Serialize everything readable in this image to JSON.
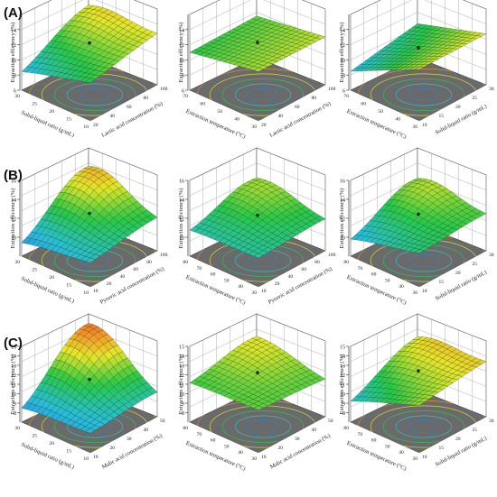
{
  "figure": {
    "row_labels": [
      "(A)",
      "(B)",
      "(C)"
    ]
  },
  "chart_data": [
    {
      "type": "surface",
      "row": "A",
      "zlabel": "Extraction efficiency (%)",
      "xlabel": "Lactic acid concentration (%)",
      "ylabel": "Solid-liquid ratio (g/mL)",
      "xticks": [
        "20",
        "40",
        "60",
        "80",
        "100"
      ],
      "yticks": [
        "10",
        "15",
        "20",
        "25",
        "30"
      ],
      "zticks": [
        "6",
        "8",
        "10",
        "12",
        "14"
      ],
      "zlim": [
        6,
        16
      ],
      "corners": {
        "x0y0": 8.2,
        "x1y0": 11.0,
        "x0y1": 11.0,
        "x1y1": 13.0
      },
      "peak": 15.2
    },
    {
      "type": "surface",
      "row": "A",
      "zlabel": "Extraction efficiency (%)",
      "xlabel": "Lactic acid concentration (%)",
      "ylabel": "Extraction temperature (°C)",
      "xticks": [
        "20",
        "40",
        "60",
        "80",
        "100"
      ],
      "yticks": [
        "30",
        "40",
        "50",
        "60",
        "70"
      ],
      "zticks": [
        "6",
        "8",
        "10",
        "12",
        "14"
      ],
      "zlim": [
        6,
        16
      ],
      "corners": {
        "x0y0": 11.0,
        "x1y0": 12.5,
        "x0y1": 11.5,
        "x1y1": 12.8
      },
      "peak": 12.5
    },
    {
      "type": "surface",
      "row": "A",
      "zlabel": "Extraction efficiency (%)",
      "xlabel": "Solid-liquid ratio (g/mL)",
      "ylabel": "Extraction temperature (°C)",
      "xticks": [
        "10",
        "15",
        "20",
        "25",
        "30"
      ],
      "yticks": [
        "30",
        "40",
        "50",
        "60",
        "70"
      ],
      "zticks": [
        "6",
        "8",
        "10",
        "12",
        "14"
      ],
      "zlim": [
        6,
        16
      ],
      "corners": {
        "x0y0": 8.5,
        "x1y0": 12.8,
        "x0y1": 10.5,
        "x1y1": 13.2
      },
      "peak": 13.2
    },
    {
      "type": "surface",
      "row": "B",
      "zlabel": "Extraction efficiency (%)",
      "xlabel": "Pyruvic acid concentration (%)",
      "ylabel": "Solid-liquid ratio (g/mL)",
      "xticks": [
        "10",
        "20",
        "40",
        "60",
        "80",
        "100"
      ],
      "yticks": [
        "10",
        "15",
        "20",
        "25",
        "30"
      ],
      "zticks": [
        "10",
        "12",
        "14",
        "16"
      ],
      "zlim": [
        8,
        16
      ],
      "corners": {
        "x0y0": 9.0,
        "x1y0": 10.5,
        "x0y1": 11.0,
        "x1y1": 11.5
      },
      "peak": 15.0
    },
    {
      "type": "surface",
      "row": "B",
      "zlabel": "Extraction efficiency (%)",
      "xlabel": "Pyruvic acid concentration (%)",
      "ylabel": "Extraction temperature (°C)",
      "xticks": [
        "10",
        "20",
        "40",
        "60",
        "80",
        "100"
      ],
      "yticks": [
        "30",
        "40",
        "50",
        "60",
        "70",
        "80"
      ],
      "zticks": [
        "10",
        "12",
        "14",
        "16"
      ],
      "zlim": [
        8,
        16
      ],
      "corners": {
        "x0y0": 10.5,
        "x1y0": 11.0,
        "x0y1": 11.0,
        "x1y1": 11.5
      },
      "peak": 13.6
    },
    {
      "type": "surface",
      "row": "B",
      "zlabel": "Extraction efficiency (%)",
      "xlabel": "Solid-liquid ratio (g/mL)",
      "ylabel": "Extraction temperature (°C)",
      "xticks": [
        "10",
        "15",
        "20",
        "25",
        "30"
      ],
      "yticks": [
        "30",
        "40",
        "50",
        "60",
        "70",
        "80"
      ],
      "zticks": [
        "10",
        "12",
        "14",
        "16"
      ],
      "zlim": [
        8,
        16
      ],
      "corners": {
        "x0y0": 9.5,
        "x1y0": 11.5,
        "x0y1": 10.5,
        "x1y1": 12.0
      },
      "peak": 14.6
    },
    {
      "type": "surface",
      "row": "C",
      "zlabel": "Extraction efficiency (%)",
      "xlabel": "Malic acid concentration (%)",
      "ylabel": "Solid-liquid ratio (g/mL)",
      "xticks": [
        "10",
        "20",
        "30",
        "40",
        "50"
      ],
      "yticks": [
        "10",
        "15",
        "20",
        "25",
        "30"
      ],
      "zticks": [
        "8",
        "9",
        "10",
        "11",
        "12",
        "13",
        "14",
        "15"
      ],
      "zlim": [
        7,
        15
      ],
      "corners": {
        "x0y0": 8.0,
        "x1y0": 9.0,
        "x0y1": 10.5,
        "x1y1": 9.5
      },
      "peak": 14.5
    },
    {
      "type": "surface",
      "row": "C",
      "zlabel": "Extraction efficiency (%)",
      "xlabel": "Malic acid concentration (%)",
      "ylabel": "Extraction temperature (°C)",
      "xticks": [
        "10",
        "20",
        "30",
        "40",
        "50"
      ],
      "yticks": [
        "30",
        "40",
        "50",
        "60",
        "70",
        "80"
      ],
      "zticks": [
        "8",
        "9",
        "10",
        "11",
        "12",
        "13",
        "14",
        "15"
      ],
      "zlim": [
        7,
        15
      ],
      "corners": {
        "x0y0": 11.0,
        "x1y0": 11.5,
        "x0y1": 11.5,
        "x1y1": 11.2
      },
      "peak": 12.8
    },
    {
      "type": "surface",
      "row": "C",
      "zlabel": "Extraction efficiency (%)",
      "xlabel": "Solid-liquid ratio (g/mL)",
      "ylabel": "Extraction temperature (°C)",
      "xticks": [
        "10",
        "15",
        "20",
        "25",
        "30"
      ],
      "yticks": [
        "30",
        "40",
        "50",
        "60",
        "70",
        "80"
      ],
      "zticks": [
        "8",
        "9",
        "10",
        "11",
        "12",
        "13",
        "14",
        "15"
      ],
      "zlim": [
        7,
        15
      ],
      "corners": {
        "x0y0": 9.0,
        "x1y0": 12.0,
        "x0y1": 11.0,
        "x1y1": 13.0
      },
      "peak": 14.8
    }
  ]
}
